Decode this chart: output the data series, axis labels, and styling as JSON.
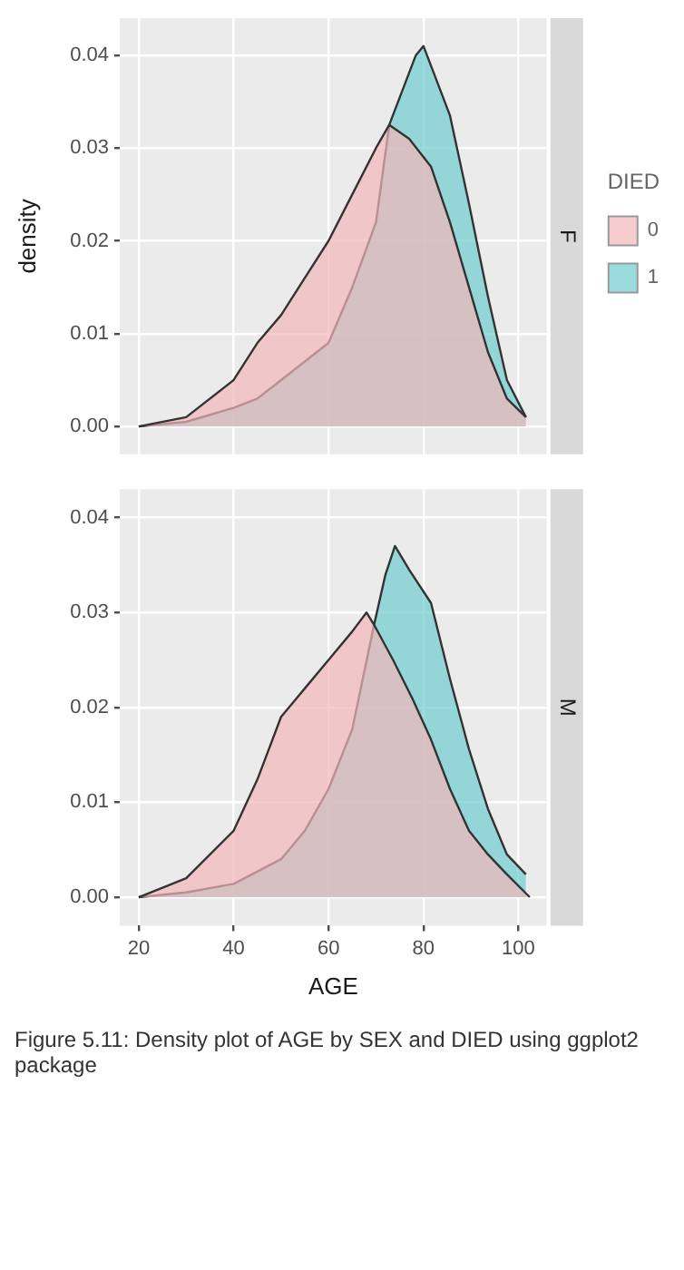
{
  "chart_data": [
    {
      "type": "area",
      "title": "F",
      "ylabel": "density",
      "legend": "right",
      "legend_title": "DIED",
      "grid": true,
      "tick_labels": "y",
      "marker": "none",
      "xlim": [
        16,
        106
      ],
      "xticks": [
        20,
        40,
        60,
        80,
        100
      ],
      "ylim": [
        -0.003,
        0.044
      ],
      "yticks": [
        {
          "value": 0,
          "label": "0.00"
        },
        {
          "value": 0.01,
          "label": "0.01"
        },
        {
          "value": 0.02,
          "label": "0.02"
        },
        {
          "value": 0.03,
          "label": "0.03"
        },
        {
          "value": 0.04,
          "label": "0.04"
        }
      ],
      "series": [
        {
          "name": "0",
          "color": "#f4b6b9",
          "x": [
            20,
            30,
            40,
            45,
            50,
            55,
            60,
            65,
            70,
            72.8,
            77,
            81.6,
            85.6,
            89.6,
            93.6,
            97.6,
            101.6
          ],
          "values": [
            0,
            0.001,
            0.005,
            0.009,
            0.012,
            0.016,
            0.02,
            0.025,
            0.03,
            0.0325,
            0.031,
            0.028,
            0.022,
            0.015,
            0.008,
            0.003,
            0.001
          ]
        },
        {
          "name": "1",
          "color": "#6fcdd0",
          "x": [
            20,
            30,
            40,
            45,
            50,
            55,
            60,
            65,
            70,
            72.8,
            78.4,
            80,
            85.6,
            89.6,
            93.6,
            97.6,
            101.6
          ],
          "values": [
            0,
            0.0005,
            0.002,
            0.003,
            0.005,
            0.007,
            0.009,
            0.015,
            0.022,
            0.0325,
            0.04,
            0.041,
            0.0335,
            0.024,
            0.014,
            0.005,
            0.001
          ]
        }
      ]
    },
    {
      "type": "area",
      "title": "M",
      "xlabel": "AGE",
      "grid": true,
      "marker": "none",
      "xlim": [
        16,
        106
      ],
      "xticks": [
        20,
        40,
        60,
        80,
        100
      ],
      "ylim": [
        -0.003,
        0.043
      ],
      "yticks": [
        {
          "value": 0,
          "label": "0.00"
        },
        {
          "value": 0.01,
          "label": "0.01"
        },
        {
          "value": 0.02,
          "label": "0.02"
        },
        {
          "value": 0.03,
          "label": "0.03"
        },
        {
          "value": 0.04,
          "label": "0.04"
        }
      ],
      "annotations": [
        "Figure 5.11: Density plot of AGE by SEX and DIED using ggplot2 package"
      ],
      "series": [
        {
          "color": "#f4b6b9",
          "x": [
            20,
            30,
            40,
            45,
            50,
            55,
            60,
            65,
            68,
            69.6,
            73.6,
            77.6,
            81.6,
            85.6,
            89.6,
            93.6,
            97.6,
            102.4
          ],
          "values": [
            0,
            0.002,
            0.007,
            0.0124,
            0.019,
            0.022,
            0.025,
            0.028,
            0.03,
            0.0287,
            0.025,
            0.021,
            0.0166,
            0.0114,
            0.007,
            0.0045,
            0.0024,
            0
          ]
        },
        {
          "color": "#6fcdd0",
          "x": [
            20,
            30,
            40,
            50,
            55,
            60,
            65,
            69.6,
            72,
            74,
            77,
            81.6,
            85.6,
            89.6,
            93.6,
            97.6,
            101.6
          ],
          "values": [
            0,
            0.0005,
            0.0014,
            0.004,
            0.007,
            0.0114,
            0.0177,
            0.0287,
            0.034,
            0.037,
            0.0345,
            0.031,
            0.023,
            0.0156,
            0.0093,
            0.0045,
            0.0024
          ]
        }
      ]
    }
  ]
}
